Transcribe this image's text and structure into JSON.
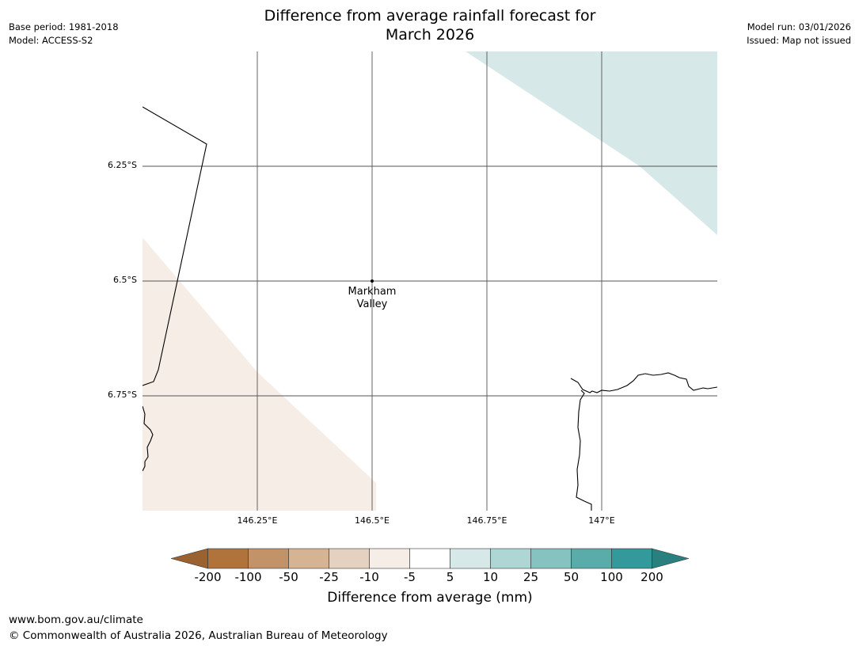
{
  "header": {
    "title_line1": "Difference from average rainfall forecast for",
    "title_line2": "March 2026",
    "base_period": "Base period: 1981-2018",
    "model": "Model: ACCESS-S2",
    "model_run": "Model run: 03/01/2026",
    "issued": "Issued: Map not issued"
  },
  "map": {
    "lat_labels": [
      "6.25°S",
      "6.5°S",
      "6.75°S"
    ],
    "lon_labels": [
      "146.25°E",
      "146.5°E",
      "146.75°E",
      "147°E"
    ],
    "place": {
      "name_line1": "Markham",
      "name_line2": "Valley",
      "lat": -6.5,
      "lon": 146.5
    },
    "extent": {
      "lon_min": 146.0,
      "lon_max": 147.25,
      "lat_min": -7.0,
      "lat_max": -6.0
    }
  },
  "legend": {
    "title": "Difference from average (mm)",
    "ticks": [
      "-200",
      "-100",
      "-50",
      "-25",
      "-10",
      "-5",
      "5",
      "10",
      "25",
      "50",
      "100",
      "200"
    ],
    "colors": {
      "below_min": "#9b6231",
      "bins": [
        "#af733b",
        "#c29368",
        "#d5b393",
        "#e5d1bf",
        "#f5ede6",
        "#ffffff",
        "#d6e9e8",
        "#aed6d5",
        "#86c2c0",
        "#5aacab",
        "#33999a"
      ],
      "above_max": "#2a7f7f"
    }
  },
  "footer": {
    "url": "www.bom.gov.au/climate",
    "copyright": "© Commonwealth of Australia 2026, Australian Bureau of Meteorology"
  }
}
